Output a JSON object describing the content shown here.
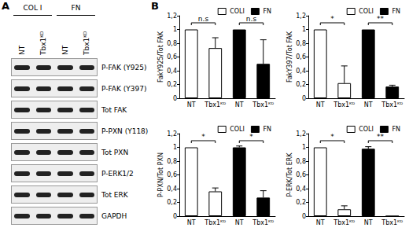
{
  "panel_a": {
    "label": "A",
    "groups": [
      "COL I",
      "FN"
    ],
    "lanes": [
      "NT",
      "Tbx1ᴷᴰ",
      "NT",
      "Tbx1ᴷᴰ"
    ],
    "rows": [
      "P-FAK (Y925)",
      "P-FAK (Y397)",
      "Tot FAK",
      "P-PXN (Y118)",
      "Tot PXN",
      "P-ERK1/2",
      "Tot ERK",
      "GAPDH"
    ]
  },
  "panel_b": {
    "label": "B"
  },
  "chart_data": [
    {
      "type": "bar",
      "y_label": "FakY925/Tot FAK",
      "categories": [
        "NT",
        "Tbx1ᴷᴰ",
        "NT",
        "Tbx1ᴷᴰ"
      ],
      "series": [
        {
          "name": "COLI",
          "color": "#ffffff",
          "values": [
            1,
            0.73,
            null,
            null
          ],
          "errors": [
            0,
            0.15,
            null,
            null
          ]
        },
        {
          "name": "FN",
          "color": "#000000",
          "values": [
            null,
            null,
            1,
            0.5
          ],
          "errors": [
            null,
            null,
            0,
            0.35
          ]
        }
      ],
      "significance": [
        "n.s",
        "n.s"
      ],
      "ylim": [
        0,
        1.2
      ],
      "yticks": [
        0,
        {
          "value": 0.2,
          "label": "0,2"
        },
        {
          "value": 0.4,
          "label": "0,4"
        },
        {
          "value": 0.6,
          "label": "0,6"
        },
        {
          "value": 0.8,
          "label": "0,8"
        },
        1,
        {
          "value": 1.2,
          "label": "1,2"
        }
      ],
      "legend": "upper right",
      "grid": false
    },
    {
      "type": "bar",
      "y_label": "FakY397/Tot FAK",
      "categories": [
        "NT",
        "Tbx1ᴷᴰ",
        "NT",
        "Tbx1ᴷᴰ"
      ],
      "series": [
        {
          "name": "COLI",
          "color": "#ffffff",
          "values": [
            1,
            0.22,
            null,
            null
          ],
          "errors": [
            0,
            0.25,
            null,
            null
          ]
        },
        {
          "name": "FN",
          "color": "#000000",
          "values": [
            null,
            null,
            1,
            0.17
          ],
          "errors": [
            null,
            null,
            0,
            0.02
          ]
        }
      ],
      "significance": [
        "*",
        "**"
      ],
      "ylim": [
        0,
        1.2
      ],
      "yticks": [
        0,
        {
          "value": 0.2,
          "label": "0,2"
        },
        {
          "value": 0.4,
          "label": "0,4"
        },
        {
          "value": 0.6,
          "label": "0,6"
        },
        {
          "value": 0.8,
          "label": "0,8"
        },
        1,
        {
          "value": 1.2,
          "label": "1,2"
        }
      ],
      "legend": "upper right",
      "grid": false
    },
    {
      "type": "bar",
      "y_label": "P-PXN/Tot PXN",
      "categories": [
        "NT",
        "Tbx1ᴷᴰ",
        "NT",
        "Tbx1ᴷᴰ"
      ],
      "series": [
        {
          "name": "COLI",
          "color": "#ffffff",
          "values": [
            1,
            0.36,
            null,
            null
          ],
          "errors": [
            0,
            0.05,
            null,
            null
          ]
        },
        {
          "name": "FN",
          "color": "#000000",
          "values": [
            null,
            null,
            1,
            0.27
          ],
          "errors": [
            null,
            null,
            0.02,
            0.1
          ]
        }
      ],
      "significance": [
        "*",
        "*"
      ],
      "ylim": [
        0,
        1.2
      ],
      "yticks": [
        0,
        {
          "value": 0.2,
          "label": "0,2"
        },
        {
          "value": 0.4,
          "label": "0,4"
        },
        {
          "value": 0.6,
          "label": "0,6"
        },
        {
          "value": 0.8,
          "label": "0,8"
        },
        1,
        {
          "value": 1.2,
          "label": "1,2"
        }
      ],
      "legend": "upper right",
      "grid": false
    },
    {
      "type": "bar",
      "y_label": "P-ERK/Tot ERK",
      "categories": [
        "NT",
        "Tbx1ᴷᴰ",
        "NT",
        "Tbx1ᴷᴰ"
      ],
      "series": [
        {
          "name": "COLI",
          "color": "#ffffff",
          "values": [
            1,
            0.1,
            null,
            null
          ],
          "errors": [
            0,
            0.05,
            null,
            null
          ]
        },
        {
          "name": "FN",
          "color": "#000000",
          "values": [
            null,
            null,
            0.98,
            0
          ],
          "errors": [
            null,
            null,
            0.03,
            0
          ]
        }
      ],
      "significance": [
        "*",
        "**"
      ],
      "ylim": [
        0,
        1.2
      ],
      "yticks": [
        0,
        {
          "value": 0.2,
          "label": "0,2"
        },
        {
          "value": 0.4,
          "label": "0,4"
        },
        {
          "value": 0.6,
          "label": "0,6"
        },
        {
          "value": 0.8,
          "label": "0,8"
        },
        1,
        {
          "value": 1.2,
          "label": "1,2"
        }
      ],
      "legend": "upper right",
      "grid": false
    }
  ]
}
